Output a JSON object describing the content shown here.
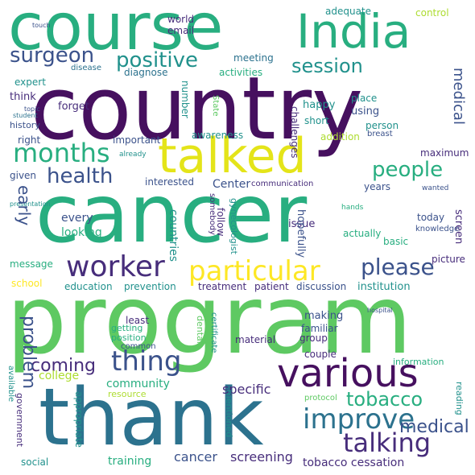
{
  "words": {
    "program": "program",
    "country": "country",
    "cancer": "cancer",
    "thank": "thank",
    "course": "course",
    "india": "India",
    "talked": "talked",
    "various": "various",
    "worker": "worker",
    "particular": "particular",
    "improve": "improve",
    "talking": "talking",
    "thing": "thing",
    "months": "months",
    "surgeon": "surgeon",
    "positive": "positive",
    "session": "session",
    "health": "health",
    "people": "people",
    "please": "please",
    "medical": "medical",
    "early": "early",
    "tobacco": "tobacco",
    "coming": "coming",
    "problem": "problem",
    "countries": "countries",
    "specific": "specific",
    "screening": "screening",
    "cancer_screening": "cancer",
    "tobacco_cessation": "tobacco cessation",
    "training": "training",
    "community": "community",
    "college": "college",
    "every": "every",
    "looking": "looking",
    "center": "Center",
    "communication": "communication",
    "interested": "interested",
    "important": "important",
    "awareness": "awareness",
    "addition": "addition",
    "person": "person",
    "breast": "breast",
    "happy": "happy",
    "using": "using",
    "short": "short",
    "place": "place",
    "think": "think",
    "forget": "forget",
    "history": "history",
    "right": "right",
    "given": "given",
    "already": "already",
    "years": "years",
    "wanted": "wanted",
    "maximum": "maximum",
    "today": "today",
    "knowledge": "knowledge",
    "screen": "screen",
    "basic": "basic",
    "picture": "picture",
    "hopefully": "hopefully",
    "actually": "actually",
    "issue": "issue",
    "gynecologist": "gynecologist",
    "follow": "follow",
    "somebody": "somebody",
    "hands": "hands",
    "message": "message",
    "school": "school",
    "education": "education",
    "prevention": "prevention",
    "treatment": "treatment",
    "patient": "patient",
    "discussion": "discussion",
    "institution": "institution",
    "making": "making",
    "familiar": "familiar",
    "group": "group",
    "material": "material",
    "couple": "couple",
    "information": "information",
    "least": "least",
    "getting": "getting",
    "position": "position",
    "common": "common",
    "dental": "dental",
    "hospital": "hospital",
    "certificate": "certificate",
    "resource": "resource",
    "protocol": "protocol",
    "reading": "reading",
    "appropriate": "appropriate",
    "government": "government",
    "available": "available",
    "mentioned": "mentioned",
    "social": "social",
    "presentation": "presentation",
    "world": "world",
    "email": "email",
    "adequate": "adequate",
    "control": "control",
    "meeting": "meeting",
    "disease": "disease",
    "diagnose": "diagnose",
    "activities": "activities",
    "expert": "expert",
    "touch": "touch",
    "topic": "topic",
    "student": "student",
    "number": "number",
    "state": "State",
    "challenges": "challenges"
  },
  "colors": {
    "background": "#ffffff"
  }
}
